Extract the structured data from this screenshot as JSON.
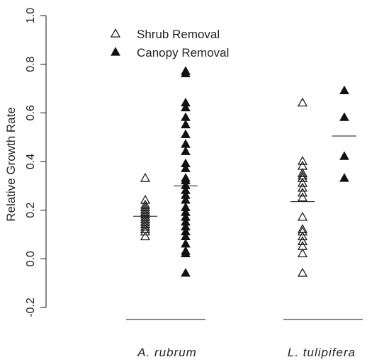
{
  "chart_data": {
    "type": "scatter",
    "title": "",
    "xlabel": "",
    "ylabel": "Relative Growth Rate",
    "ylim": [
      -0.2,
      1.0
    ],
    "yticks": [
      "-0.2",
      "0.0",
      "0.2",
      "0.4",
      "0.6",
      "0.8",
      "1.0"
    ],
    "grid": false,
    "legend_position": "top-left",
    "categories": [
      "A. rubrum",
      "L. tulipifera"
    ],
    "series": [
      {
        "name": "Shrub Removal",
        "marker": "open-triangle",
        "color": "#111111",
        "groups": [
          {
            "category": "A. rubrum",
            "mean": 0.175,
            "values": [
              0.33,
              0.24,
              0.22,
              0.21,
              0.2,
              0.19,
              0.18,
              0.17,
              0.16,
              0.15,
              0.14,
              0.13,
              0.12,
              0.11,
              0.09
            ]
          },
          {
            "category": "L. tulipifera",
            "mean": 0.235,
            "values": [
              0.64,
              0.4,
              0.38,
              0.35,
              0.34,
              0.33,
              0.31,
              0.29,
              0.27,
              0.25,
              0.17,
              0.12,
              0.11,
              0.09,
              0.07,
              0.05,
              0.02,
              -0.06
            ]
          }
        ]
      },
      {
        "name": "Canopy Removal",
        "marker": "filled-triangle",
        "color": "#111111",
        "groups": [
          {
            "category": "A. rubrum",
            "mean": 0.3,
            "values": [
              0.77,
              0.76,
              0.64,
              0.62,
              0.58,
              0.55,
              0.51,
              0.47,
              0.44,
              0.39,
              0.37,
              0.33,
              0.32,
              0.3,
              0.28,
              0.26,
              0.24,
              0.21,
              0.19,
              0.17,
              0.15,
              0.13,
              0.11,
              0.09,
              0.06,
              0.03,
              0.02,
              -0.06
            ]
          },
          {
            "category": "L. tulipifera",
            "mean": 0.505,
            "values": [
              0.69,
              0.58,
              0.42,
              0.33
            ]
          }
        ]
      }
    ]
  }
}
